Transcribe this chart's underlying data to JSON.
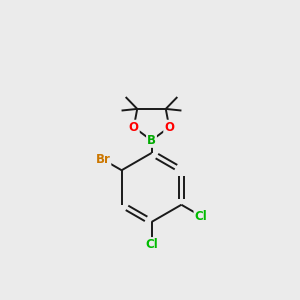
{
  "background_color": "#ebebeb",
  "bond_color": "#1a1a1a",
  "atom_colors": {
    "B": "#00aa00",
    "O": "#ff0000",
    "Br": "#cc7700",
    "Cl": "#00bb00",
    "C": "#1a1a1a"
  },
  "figsize": [
    3.0,
    3.0
  ],
  "dpi": 100,
  "bond_lw": 1.4,
  "font_size_atom": 8.5,
  "font_size_methyl": 7.0
}
